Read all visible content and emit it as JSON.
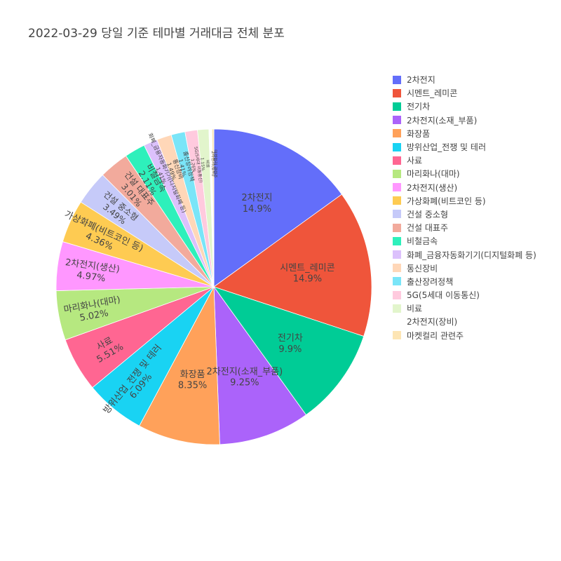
{
  "chart_data": {
    "type": "pie",
    "title": "2022-03-29 당일 기준 테마별 거래대금 전체 분포",
    "legend_position": "right",
    "slices": [
      {
        "label": "2차전지",
        "percent": 14.9,
        "percent_label": "14.9%",
        "color": "#636efa"
      },
      {
        "label": "시멘트_레미콘",
        "percent": 14.9,
        "percent_label": "14.9%",
        "color": "#EF553B"
      },
      {
        "label": "전기차",
        "percent": 9.9,
        "percent_label": "9.9%",
        "color": "#00cc96"
      },
      {
        "label": "2차전지(소재_부품)",
        "percent": 9.25,
        "percent_label": "9.25%",
        "color": "#ab63fa"
      },
      {
        "label": "화장품",
        "percent": 8.35,
        "percent_label": "8.35%",
        "color": "#FFA15A"
      },
      {
        "label": "방위산업_전쟁 및 테러",
        "percent": 6.09,
        "percent_label": "6.09%",
        "color": "#19d3f3"
      },
      {
        "label": "사료",
        "percent": 5.51,
        "percent_label": "5.51%",
        "color": "#FF6692"
      },
      {
        "label": "마리화나(대마)",
        "percent": 5.02,
        "percent_label": "5.02%",
        "color": "#B6E880"
      },
      {
        "label": "2차전지(생산)",
        "percent": 4.97,
        "percent_label": "4.97%",
        "color": "#FF97FF"
      },
      {
        "label": "가상화폐(비트코인 등)",
        "percent": 4.36,
        "percent_label": "4.36%",
        "color": "#FECB52"
      },
      {
        "label": "건설 중소형",
        "percent": 3.49,
        "percent_label": "3.49%",
        "color": "#c6caf9"
      },
      {
        "label": "건설 대표주",
        "percent": 3.01,
        "percent_label": "3.01%",
        "color": "#f2aa9c"
      },
      {
        "label": "비철금속",
        "percent": 2.11,
        "percent_label": "2.11%",
        "color": "#2ef0bb"
      },
      {
        "label": "화폐_금융자동화기기(디지털화폐 등)",
        "percent": 1.41,
        "percent_label": "1.41%",
        "color": "#dcc1fc"
      },
      {
        "label": "통신장비",
        "percent": 1.49,
        "percent_label": "1.49%",
        "color": "#ffd7b8"
      },
      {
        "label": "출산장려정책",
        "percent": 1.41,
        "percent_label": "1.41%",
        "color": "#7ae5f8"
      },
      {
        "label": "5G(5세대 이동통신)",
        "percent": 1.26,
        "percent_label": "1.26%",
        "color": "#ffcade"
      },
      {
        "label": "비료",
        "percent": 1.15,
        "percent_label": "1.15%",
        "color": "#e2f5cc"
      },
      {
        "label": "2차전지(장비)",
        "percent": 0.3,
        "percent_label": "",
        "color": "#ffffff"
      },
      {
        "label": "마켓컬리 관련주",
        "percent": 0.2,
        "percent_label": "",
        "color": "#fde5b4"
      }
    ]
  }
}
